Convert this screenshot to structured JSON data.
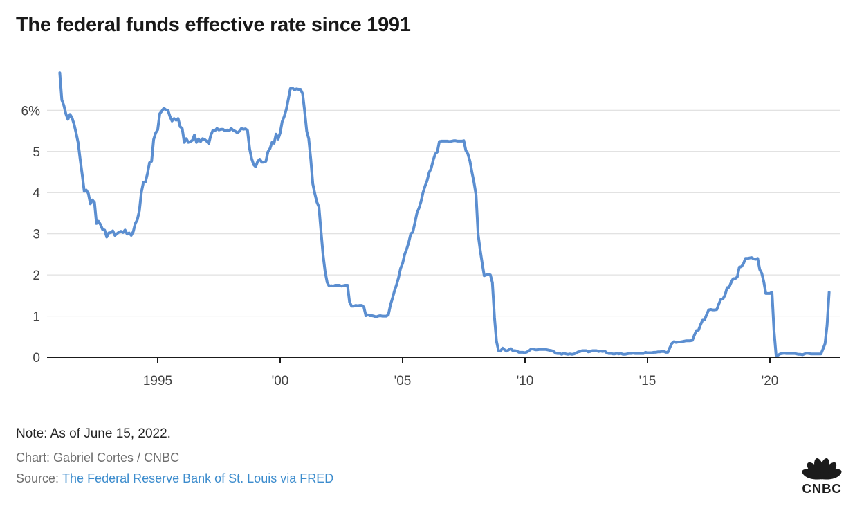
{
  "header": {
    "title": "The federal funds effective rate since 1991"
  },
  "footer": {
    "note": "Note: As of June 15, 2022.",
    "credit": "Chart: Gabriel Cortes / CNBC",
    "source_label": "Source:",
    "source_link": "The Federal Reserve Bank of St. Louis via FRED",
    "logo_text": "CNBC"
  },
  "colors": {
    "line": "#5b8ed0",
    "grid": "#d9d9d9",
    "axis": "#1a1a1a",
    "link": "#3c8ccd",
    "text_title": "#191919",
    "text_note": "#242424",
    "text_gray": "#6f6f6f",
    "text_axis": "#434343",
    "logo": "#1b1b1b"
  },
  "chart_data": {
    "type": "line",
    "title": "The federal funds effective rate since 1991",
    "note": "As of June 15, 2022",
    "unit": "%",
    "xlabel": "",
    "ylabel": "",
    "grid": "horizontal",
    "legend": "none",
    "xlim": [
      1990.48,
      2022.88
    ],
    "ylim": [
      0,
      7.25
    ],
    "line_color": "#5b8ed0",
    "x_ticks": [
      {
        "year": 1995,
        "label": "1995"
      },
      {
        "year": 2000,
        "label": "'00"
      },
      {
        "year": 2005,
        "label": "'05"
      },
      {
        "year": 2010,
        "label": "'10"
      },
      {
        "year": 2015,
        "label": "'15"
      },
      {
        "year": 2020,
        "label": "'20"
      }
    ],
    "y_ticks": [
      {
        "value": 6,
        "label": "6%"
      },
      {
        "value": 5,
        "label": "5"
      },
      {
        "value": 4,
        "label": "4"
      },
      {
        "value": 3,
        "label": "3"
      },
      {
        "value": 2,
        "label": "2"
      },
      {
        "value": 1,
        "label": "1"
      },
      {
        "value": 0,
        "label": "0"
      }
    ],
    "series": [
      {
        "name": "Federal funds effective rate",
        "x_start": 1991.0,
        "x_step": 0.0833333,
        "values": [
          6.91,
          6.25,
          6.12,
          5.91,
          5.78,
          5.9,
          5.82,
          5.66,
          5.45,
          5.21,
          4.81,
          4.43,
          4.03,
          4.06,
          3.98,
          3.73,
          3.82,
          3.76,
          3.25,
          3.3,
          3.22,
          3.1,
          3.09,
          2.92,
          3.02,
          3.03,
          3.07,
          2.96,
          3.0,
          3.04,
          3.06,
          3.03,
          3.09,
          2.99,
          3.02,
          2.96,
          3.05,
          3.25,
          3.34,
          3.56,
          4.01,
          4.25,
          4.26,
          4.47,
          4.73,
          4.76,
          5.29,
          5.45,
          5.53,
          5.92,
          5.98,
          6.05,
          6.01,
          6.0,
          5.85,
          5.74,
          5.8,
          5.76,
          5.8,
          5.6,
          5.56,
          5.22,
          5.31,
          5.22,
          5.24,
          5.27,
          5.4,
          5.22,
          5.3,
          5.24,
          5.31,
          5.29,
          5.25,
          5.19,
          5.39,
          5.51,
          5.5,
          5.56,
          5.52,
          5.54,
          5.54,
          5.5,
          5.52,
          5.5,
          5.56,
          5.51,
          5.49,
          5.45,
          5.49,
          5.56,
          5.54,
          5.55,
          5.51,
          5.07,
          4.83,
          4.68,
          4.63,
          4.76,
          4.81,
          4.74,
          4.74,
          4.76,
          4.99,
          5.07,
          5.22,
          5.2,
          5.42,
          5.3,
          5.45,
          5.73,
          5.85,
          6.02,
          6.27,
          6.53,
          6.54,
          6.5,
          6.52,
          6.51,
          6.51,
          6.4,
          5.98,
          5.49,
          5.31,
          4.8,
          4.21,
          3.97,
          3.77,
          3.65,
          3.07,
          2.49,
          2.09,
          1.82,
          1.73,
          1.74,
          1.73,
          1.75,
          1.75,
          1.75,
          1.73,
          1.74,
          1.75,
          1.75,
          1.34,
          1.24,
          1.24,
          1.26,
          1.25,
          1.26,
          1.26,
          1.22,
          1.01,
          1.03,
          1.01,
          1.01,
          1.0,
          0.98,
          1.0,
          1.01,
          1.0,
          1.0,
          1.0,
          1.03,
          1.26,
          1.43,
          1.61,
          1.76,
          1.93,
          2.16,
          2.28,
          2.5,
          2.63,
          2.79,
          3.0,
          3.04,
          3.26,
          3.5,
          3.62,
          3.78,
          4.0,
          4.16,
          4.29,
          4.49,
          4.59,
          4.79,
          4.94,
          4.99,
          5.24,
          5.25,
          5.25,
          5.25,
          5.25,
          5.24,
          5.25,
          5.26,
          5.26,
          5.25,
          5.25,
          5.25,
          5.26,
          5.02,
          4.94,
          4.76,
          4.49,
          4.24,
          3.94,
          2.98,
          2.61,
          2.28,
          1.98,
          2.0,
          2.01,
          2.0,
          1.81,
          0.97,
          0.39,
          0.16,
          0.15,
          0.22,
          0.18,
          0.15,
          0.18,
          0.21,
          0.16,
          0.16,
          0.15,
          0.12,
          0.12,
          0.12,
          0.11,
          0.13,
          0.16,
          0.2,
          0.2,
          0.18,
          0.18,
          0.19,
          0.19,
          0.19,
          0.19,
          0.18,
          0.17,
          0.16,
          0.14,
          0.1,
          0.09,
          0.09,
          0.07,
          0.1,
          0.08,
          0.07,
          0.08,
          0.07,
          0.08,
          0.1,
          0.13,
          0.14,
          0.16,
          0.16,
          0.16,
          0.13,
          0.14,
          0.16,
          0.16,
          0.16,
          0.14,
          0.15,
          0.14,
          0.15,
          0.11,
          0.09,
          0.09,
          0.08,
          0.08,
          0.09,
          0.08,
          0.09,
          0.07,
          0.07,
          0.08,
          0.09,
          0.09,
          0.1,
          0.09,
          0.09,
          0.09,
          0.09,
          0.09,
          0.12,
          0.11,
          0.11,
          0.11,
          0.12,
          0.12,
          0.13,
          0.13,
          0.14,
          0.14,
          0.12,
          0.12,
          0.24,
          0.34,
          0.38,
          0.36,
          0.37,
          0.37,
          0.38,
          0.39,
          0.4,
          0.4,
          0.4,
          0.41,
          0.54,
          0.65,
          0.66,
          0.79,
          0.9,
          0.91,
          1.04,
          1.15,
          1.16,
          1.15,
          1.15,
          1.16,
          1.3,
          1.41,
          1.42,
          1.51,
          1.69,
          1.7,
          1.82,
          1.91,
          1.91,
          1.95,
          2.19,
          2.2,
          2.27,
          2.4,
          2.4,
          2.41,
          2.42,
          2.39,
          2.38,
          2.4,
          2.13,
          2.04,
          1.83,
          1.55,
          1.55,
          1.55,
          1.58,
          0.65,
          0.05,
          0.05,
          0.08,
          0.09,
          0.1,
          0.09,
          0.09,
          0.09,
          0.09,
          0.09,
          0.08,
          0.07,
          0.07,
          0.06,
          0.08,
          0.1,
          0.09,
          0.08,
          0.08,
          0.08,
          0.08,
          0.08,
          0.08,
          0.2,
          0.33,
          0.77,
          1.58
        ]
      }
    ]
  }
}
